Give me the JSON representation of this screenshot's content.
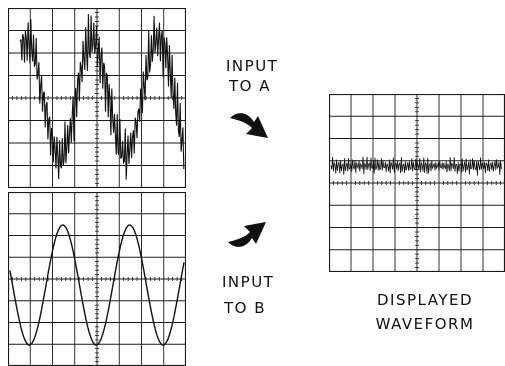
{
  "labels": {
    "input_a_line1": "INPUT",
    "input_a_line2": "TO A",
    "input_b_line1": "INPUT",
    "input_b_line2": "TO B",
    "displayed_line1": "DISPLAYED",
    "displayed_line2": "WAVEFORM"
  },
  "colors": {
    "ink": "#111111",
    "grid": "#1a1a1a",
    "background": "#ffffff"
  },
  "icons": {
    "arrow_a": "curved-arrow-down-right-icon",
    "arrow_b": "curved-arrow-up-right-icon"
  }
}
